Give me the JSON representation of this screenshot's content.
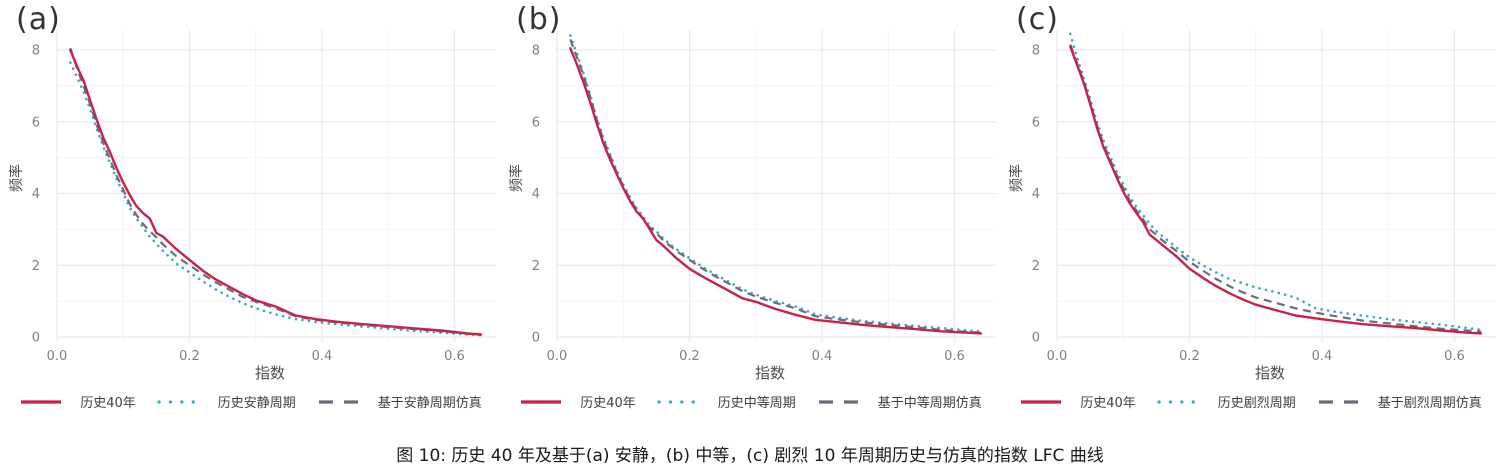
{
  "figure": {
    "caption": "图 10: 历史 40 年及基于(a) 安静，(b) 中等，(c) 剧烈 10 年周期历史与仿真的指数 LFC 曲线"
  },
  "colors": {
    "history_red": "#C72248",
    "cycle_teal": "#3BA8BC",
    "sim_gray": "#67707A",
    "grid_major": "#e9e9e9",
    "grid_minor": "#f4f4f4",
    "tick_text": "#808080"
  },
  "chart_data": [
    {
      "type": "line",
      "panel_label": "(a)",
      "xlabel": "指数",
      "ylabel": "频率",
      "xlim": [
        0,
        0.665
      ],
      "ylim": [
        0,
        8.6
      ],
      "xticks": [
        0.0,
        0.2,
        0.4,
        0.6
      ],
      "minor_xticks": [
        0.1,
        0.3,
        0.5
      ],
      "yticks": [
        0,
        2,
        4,
        6,
        8
      ],
      "minor_yticks": [
        1,
        3,
        5,
        7
      ],
      "grid": "major+minor",
      "legend_position": "bottom",
      "x": [
        0.02,
        0.03,
        0.04,
        0.05,
        0.06,
        0.07,
        0.08,
        0.09,
        0.1,
        0.11,
        0.12,
        0.13,
        0.14,
        0.15,
        0.16,
        0.18,
        0.2,
        0.22,
        0.24,
        0.26,
        0.28,
        0.3,
        0.33,
        0.36,
        0.39,
        0.42,
        0.46,
        0.5,
        0.54,
        0.58,
        0.62,
        0.64
      ],
      "series": [
        {
          "name": "历史40年",
          "style": "solid",
          "color": "#C72248",
          "y": [
            8.0,
            7.55,
            7.15,
            6.6,
            6.05,
            5.55,
            5.15,
            4.7,
            4.3,
            3.95,
            3.65,
            3.45,
            3.3,
            2.9,
            2.8,
            2.45,
            2.15,
            1.85,
            1.6,
            1.4,
            1.2,
            1.02,
            0.85,
            0.6,
            0.5,
            0.43,
            0.36,
            0.3,
            0.24,
            0.18,
            0.1,
            0.07
          ]
        },
        {
          "name": "历史安静周期",
          "style": "dotted",
          "color": "#3BA8BC",
          "y": [
            7.65,
            7.25,
            6.85,
            6.35,
            5.8,
            5.3,
            4.85,
            4.4,
            4.0,
            3.6,
            3.3,
            3.05,
            2.8,
            2.6,
            2.4,
            2.05,
            1.8,
            1.55,
            1.32,
            1.12,
            0.95,
            0.8,
            0.63,
            0.5,
            0.42,
            0.36,
            0.29,
            0.23,
            0.17,
            0.12,
            0.07,
            0.05
          ]
        },
        {
          "name": "基于安静周期仿真",
          "style": "dashed",
          "color": "#67707A",
          "y": [
            8.05,
            7.5,
            7.0,
            6.5,
            5.9,
            5.4,
            4.95,
            4.5,
            4.1,
            3.7,
            3.4,
            3.15,
            2.95,
            2.78,
            2.58,
            2.25,
            2.0,
            1.75,
            1.52,
            1.32,
            1.12,
            0.98,
            0.8,
            0.58,
            0.48,
            0.41,
            0.34,
            0.28,
            0.22,
            0.16,
            0.09,
            0.06
          ]
        }
      ]
    },
    {
      "type": "line",
      "panel_label": "(b)",
      "xlabel": "指数",
      "ylabel": "频率",
      "xlim": [
        0,
        0.665
      ],
      "ylim": [
        0,
        8.6
      ],
      "xticks": [
        0.0,
        0.2,
        0.4,
        0.6
      ],
      "minor_xticks": [
        0.1,
        0.3,
        0.5
      ],
      "yticks": [
        0,
        2,
        4,
        6,
        8
      ],
      "minor_yticks": [
        1,
        3,
        5,
        7
      ],
      "grid": "major+minor",
      "legend_position": "bottom",
      "x": [
        0.02,
        0.03,
        0.04,
        0.05,
        0.06,
        0.07,
        0.08,
        0.09,
        0.1,
        0.11,
        0.12,
        0.13,
        0.14,
        0.15,
        0.16,
        0.18,
        0.2,
        0.22,
        0.24,
        0.26,
        0.28,
        0.3,
        0.33,
        0.36,
        0.39,
        0.42,
        0.46,
        0.5,
        0.54,
        0.58,
        0.62,
        0.64
      ],
      "series": [
        {
          "name": "历史40年",
          "style": "solid",
          "color": "#C72248",
          "y": [
            8.05,
            7.6,
            7.1,
            6.55,
            5.95,
            5.4,
            4.95,
            4.55,
            4.15,
            3.8,
            3.5,
            3.3,
            3.0,
            2.7,
            2.55,
            2.2,
            1.9,
            1.68,
            1.48,
            1.28,
            1.08,
            0.98,
            0.78,
            0.62,
            0.48,
            0.42,
            0.34,
            0.28,
            0.22,
            0.16,
            0.12,
            0.1
          ]
        },
        {
          "name": "历史中等周期",
          "style": "dotted",
          "color": "#3BA8BC",
          "y": [
            8.4,
            7.9,
            7.35,
            6.75,
            6.1,
            5.55,
            5.1,
            4.65,
            4.25,
            3.9,
            3.6,
            3.35,
            3.1,
            2.95,
            2.75,
            2.45,
            2.2,
            1.95,
            1.73,
            1.53,
            1.33,
            1.18,
            1.0,
            0.85,
            0.63,
            0.55,
            0.45,
            0.38,
            0.31,
            0.25,
            0.18,
            0.15
          ]
        },
        {
          "name": "基于中等周期仿真",
          "style": "dashed",
          "color": "#67707A",
          "y": [
            8.3,
            7.8,
            7.3,
            6.7,
            6.05,
            5.5,
            5.05,
            4.6,
            4.2,
            3.85,
            3.55,
            3.3,
            3.05,
            2.9,
            2.7,
            2.4,
            2.15,
            1.9,
            1.68,
            1.48,
            1.28,
            1.13,
            0.95,
            0.8,
            0.58,
            0.5,
            0.41,
            0.34,
            0.27,
            0.2,
            0.14,
            0.12
          ]
        }
      ]
    },
    {
      "type": "line",
      "panel_label": "(c)",
      "xlabel": "指数",
      "ylabel": "频率",
      "xlim": [
        0,
        0.665
      ],
      "ylim": [
        0,
        8.6
      ],
      "xticks": [
        0.0,
        0.2,
        0.4,
        0.6
      ],
      "minor_xticks": [
        0.1,
        0.3,
        0.5
      ],
      "yticks": [
        0,
        2,
        4,
        6,
        8
      ],
      "minor_yticks": [
        1,
        3,
        5,
        7
      ],
      "grid": "major+minor",
      "legend_position": "bottom",
      "x": [
        0.02,
        0.03,
        0.04,
        0.05,
        0.06,
        0.07,
        0.08,
        0.09,
        0.1,
        0.11,
        0.12,
        0.13,
        0.14,
        0.15,
        0.16,
        0.18,
        0.2,
        0.22,
        0.24,
        0.26,
        0.28,
        0.3,
        0.33,
        0.36,
        0.39,
        0.42,
        0.46,
        0.5,
        0.54,
        0.58,
        0.62,
        0.64
      ],
      "series": [
        {
          "name": "历史40年",
          "style": "solid",
          "color": "#C72248",
          "y": [
            8.1,
            7.6,
            7.1,
            6.5,
            5.85,
            5.3,
            4.88,
            4.45,
            4.05,
            3.72,
            3.45,
            3.2,
            2.85,
            2.7,
            2.55,
            2.25,
            1.9,
            1.65,
            1.42,
            1.22,
            1.05,
            0.9,
            0.75,
            0.6,
            0.52,
            0.45,
            0.36,
            0.3,
            0.25,
            0.18,
            0.12,
            0.1
          ]
        },
        {
          "name": "历史剧烈周期",
          "style": "dotted",
          "color": "#3BA8BC",
          "y": [
            8.45,
            7.8,
            7.25,
            6.65,
            6.0,
            5.48,
            5.05,
            4.62,
            4.25,
            3.9,
            3.62,
            3.4,
            3.15,
            2.95,
            2.8,
            2.5,
            2.22,
            2.0,
            1.8,
            1.62,
            1.5,
            1.38,
            1.25,
            1.1,
            0.8,
            0.7,
            0.6,
            0.5,
            0.42,
            0.34,
            0.25,
            0.2
          ]
        },
        {
          "name": "基于剧烈周期仿真",
          "style": "dashed",
          "color": "#67707A",
          "y": [
            8.15,
            7.65,
            7.15,
            6.55,
            5.92,
            5.38,
            4.95,
            4.52,
            4.15,
            3.8,
            3.52,
            3.28,
            3.0,
            2.85,
            2.68,
            2.4,
            2.1,
            1.85,
            1.62,
            1.42,
            1.25,
            1.1,
            0.95,
            0.8,
            0.68,
            0.58,
            0.46,
            0.38,
            0.3,
            0.23,
            0.18,
            0.15
          ]
        }
      ]
    }
  ]
}
